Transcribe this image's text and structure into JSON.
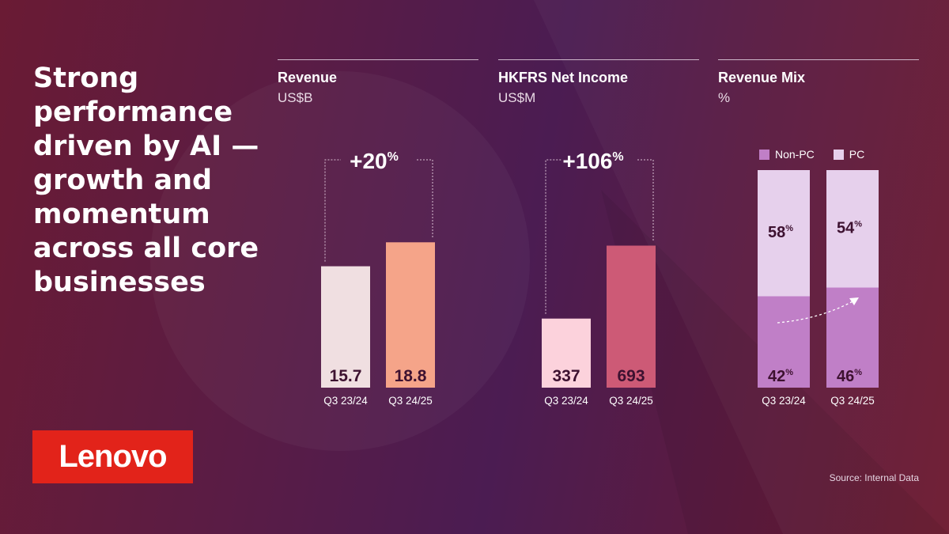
{
  "headline": "Strong performance driven by AI — growth and momentum across all core businesses",
  "logo_text": "Lenovo",
  "source": "Source: Internal Data",
  "colors": {
    "rev_old": "#f0dfe1",
    "rev_new": "#f5a489",
    "ni_old": "#fcd2dc",
    "ni_new": "#cd5a76",
    "mix_pc": "#e6d0ec",
    "mix_nonpc": "#c07fc7",
    "value_text": "#3d1130"
  },
  "chart_data": [
    {
      "type": "bar",
      "title": "Revenue",
      "unit": "US$B",
      "categories": [
        "Q3 23/24",
        "Q3 24/25"
      ],
      "values": [
        15.7,
        18.8
      ],
      "value_labels": [
        "15.7",
        "18.8"
      ],
      "growth": {
        "value": "+20",
        "suffix": "%"
      },
      "ylim": [
        0,
        22
      ]
    },
    {
      "type": "bar",
      "title": "HKFRS Net Income",
      "unit": "US$M",
      "categories": [
        "Q3 23/24",
        "Q3 24/25"
      ],
      "values": [
        337,
        693
      ],
      "value_labels": [
        "337",
        "693"
      ],
      "growth": {
        "value": "+106",
        "suffix": "%"
      },
      "ylim": [
        0,
        830
      ]
    },
    {
      "type": "bar",
      "stacked": true,
      "title": "Revenue Mix",
      "unit": "%",
      "categories": [
        "Q3 23/24",
        "Q3 24/25"
      ],
      "legend": [
        "Non-PC",
        "PC"
      ],
      "series": [
        {
          "name": "Non-PC",
          "values": [
            42,
            46
          ],
          "labels": [
            "42",
            "46"
          ]
        },
        {
          "name": "PC",
          "values": [
            58,
            54
          ],
          "labels": [
            "58",
            "54"
          ]
        }
      ],
      "ylim": [
        0,
        100
      ]
    }
  ]
}
